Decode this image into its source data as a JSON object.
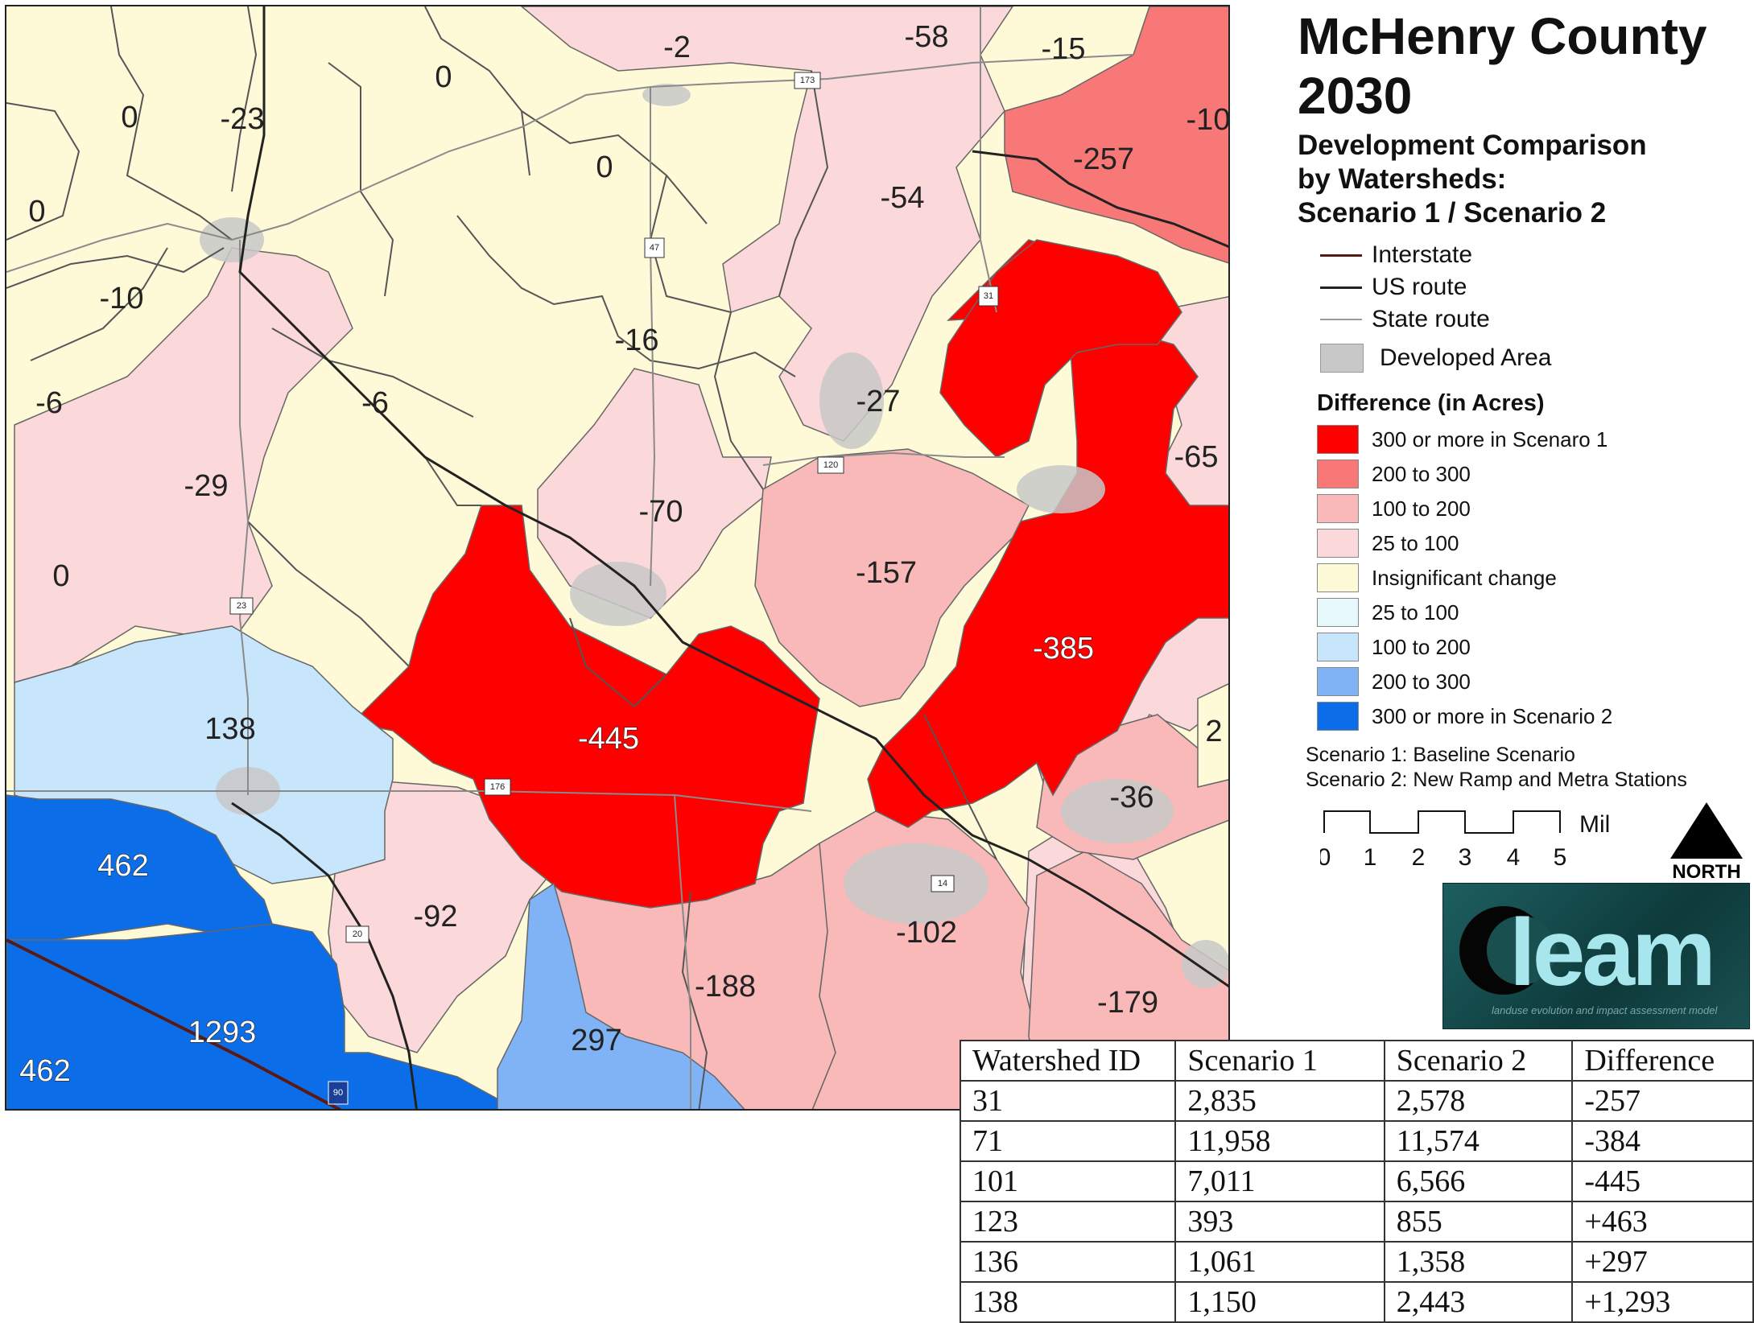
{
  "map": {
    "title_line1": "McHenry County",
    "title_line2": "2030",
    "subtitle": "Development Comparison\nby Watersheds:\nScenario 1 / Scenario 2",
    "colors": {
      "s1_300_plus": "#ff0000",
      "s1_200_300": "#f87878",
      "s1_100_200": "#f9b9b9",
      "s1_25_100": "#fbd8da",
      "insignificant": "#fefad8",
      "s2_25_100": "#e6f8fc",
      "s2_100_200": "#c7e5fb",
      "s2_200_300": "#7fb3f6",
      "s2_300_plus": "#0b6ee8",
      "developed": "#c8c8c8"
    },
    "watershed_labels": [
      "0",
      "-23",
      "0",
      "-2",
      "-58",
      "-15",
      "-10",
      "0",
      "0",
      "-257",
      "-54",
      "-10",
      "-16",
      "-6",
      "-6",
      "-27",
      "-29",
      "-70",
      "-65",
      "0",
      "-157",
      "-385",
      "138",
      "-445",
      "2",
      "462",
      "-36",
      "-92",
      "-102",
      "-188",
      "-179",
      "1293",
      "297",
      "462"
    ],
    "route_shields": [
      "173",
      "47",
      "31",
      "120",
      "23",
      "176",
      "14",
      "20",
      "90"
    ]
  },
  "legend": {
    "lines": [
      {
        "label": "Interstate",
        "color": "#5a1a14"
      },
      {
        "label": "US route",
        "color": "#222222"
      },
      {
        "label": "State route",
        "color": "#9a9a9a"
      }
    ],
    "developed_label": "Developed Area",
    "difference_title": "Difference (in Acres)",
    "classes": [
      {
        "label": "300 or more in Scenaro 1",
        "color": "#ff0000"
      },
      {
        "label": "200 to 300",
        "color": "#f87878"
      },
      {
        "label": "100 to 200",
        "color": "#f9b9b9"
      },
      {
        "label": "25 to 100",
        "color": "#fbd8da"
      },
      {
        "label": "Insignificant change",
        "color": "#fefad8"
      },
      {
        "label": "25 to 100",
        "color": "#e6f8fc"
      },
      {
        "label": "100 to 200",
        "color": "#c7e5fb"
      },
      {
        "label": "200 to 300",
        "color": "#7fb3f6"
      },
      {
        "label": "300 or more in Scenario 2",
        "color": "#0b6ee8"
      }
    ],
    "note1": "Scenario 1: Baseline Scenario",
    "note2": "Scenario 2: New Ramp and Metra Stations",
    "scale_ticks": [
      "0",
      "1",
      "2",
      "3",
      "4",
      "5"
    ],
    "scale_unit": "Miles",
    "north_label": "NORTH"
  },
  "logo": {
    "text": "leam",
    "tagline": "landuse evolution and impact assessment model"
  },
  "table": {
    "headers": [
      "Watershed ID",
      "Scenario 1",
      "Scenario 2",
      "Difference"
    ],
    "rows": [
      [
        "31",
        "2,835",
        "2,578",
        "-257"
      ],
      [
        "71",
        "11,958",
        "11,574",
        "-384"
      ],
      [
        "101",
        "7,011",
        "6,566",
        "-445"
      ],
      [
        "123",
        "393",
        "855",
        "+463"
      ],
      [
        "136",
        "1,061",
        "1,358",
        "+297"
      ],
      [
        "138",
        "1,150",
        "2,443",
        "+1,293"
      ]
    ]
  }
}
